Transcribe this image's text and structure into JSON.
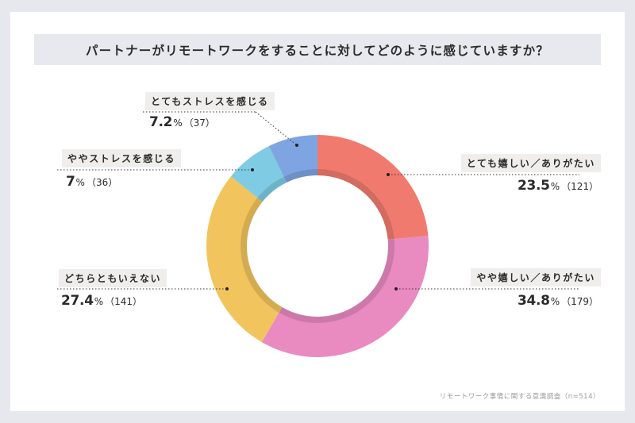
{
  "title": "パートナーがリモートワークをすることに対してどのように感じていますか？",
  "source": "リモートワーク事情に関する意識調査（n=514）",
  "colors": {
    "frame": "#e6e8ee",
    "title_bg": "#e7e9ef",
    "label_bg": "#efeeec"
  },
  "segments": [
    {
      "label": "とても嬉しい／ありがたい",
      "pct": "23.5",
      "unit": "%",
      "count": "（121）",
      "color": "#f07a6e"
    },
    {
      "label": "やや嬉しい／ありがたい",
      "pct": "34.8",
      "unit": "%",
      "count": "（179）",
      "color": "#e98ac1"
    },
    {
      "label": "どちらともいえない",
      "pct": "27.4",
      "unit": "%",
      "count": "（141）",
      "color": "#f1c45e"
    },
    {
      "label": "ややストレスを感じる",
      "pct": "7",
      "unit": "%",
      "count": "（36）",
      "color": "#7ecbe3"
    },
    {
      "label": "とてもストレスを感じる",
      "pct": "7.2",
      "unit": "%",
      "count": "（37）",
      "color": "#7ea4e2"
    }
  ],
  "chart_data": {
    "type": "pie",
    "subtype": "donut",
    "title": "パートナーがリモートワークをすることに対してどのように感じていますか？",
    "note": "リモートワーク事情に関する意識調査（n=514）",
    "n": 514,
    "categories": [
      "とても嬉しい／ありがたい",
      "やや嬉しい／ありがたい",
      "どちらともいえない",
      "ややストレスを感じる",
      "とてもストレスを感じる"
    ],
    "values": [
      23.5,
      34.8,
      27.4,
      7,
      7.2
    ],
    "counts": [
      121,
      179,
      141,
      36,
      37
    ],
    "unit": "%",
    "start_angle": "12 o'clock, clockwise",
    "legend": "callout labels"
  }
}
